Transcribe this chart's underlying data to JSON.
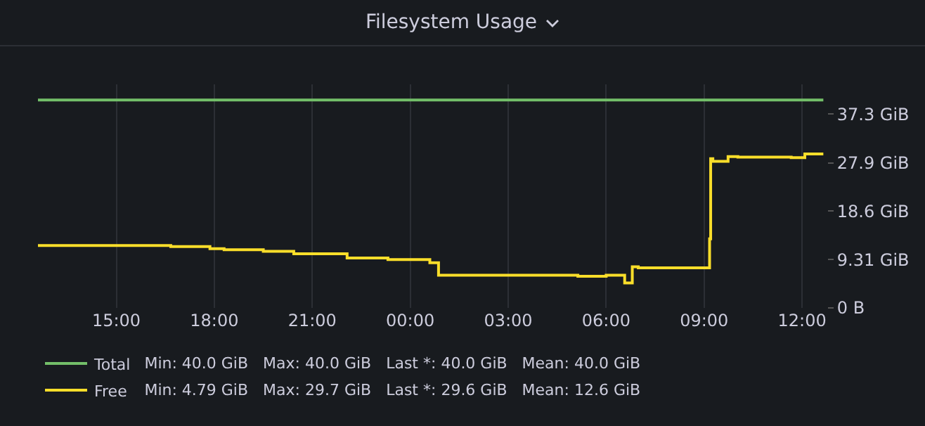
{
  "chart_data": {
    "type": "step",
    "title": "Filesystem Usage",
    "xlim": [
      "--01-01T12:36",
      "--01-02T12:45"
    ],
    "xticks": [
      {
        "value": "--01-01T15:00",
        "label": "15:00"
      },
      {
        "value": "--01-01T18:00",
        "label": "18:00"
      },
      {
        "value": "--01-01T21:00",
        "label": "21:00"
      },
      {
        "value": "--01-02T00:00",
        "label": "00:00"
      },
      {
        "value": "--01-02T03:00",
        "label": "03:00"
      },
      {
        "value": "--01-02T06:00",
        "label": "06:00"
      },
      {
        "value": "--01-02T09:00",
        "label": "09:00"
      },
      {
        "value": "--01-02T12:00",
        "label": "12:00"
      }
    ],
    "ylim": [
      0,
      43
    ],
    "yticks": [
      {
        "value": 0,
        "label": "0 B"
      },
      {
        "value": 9.31,
        "label": "9.31 GiB"
      },
      {
        "value": 18.6,
        "label": "18.6 GiB"
      },
      {
        "value": 27.9,
        "label": "27.9 GiB"
      },
      {
        "value": 37.3,
        "label": "37.3 GiB"
      }
    ],
    "grid": "x",
    "legend": "bottom left",
    "series": [
      {
        "name": "Total",
        "color": "#73bf69",
        "x": [
          "--01-01T12:36",
          "--01-02T12:39"
        ],
        "values": [
          40.0,
          40.0
        ]
      },
      {
        "name": "Free",
        "color": "#fade2a",
        "x": [
          "--01-01T12:36",
          "--01-01T16:40",
          "--01-01T17:52",
          "--01-01T18:18",
          "--01-01T19:30",
          "--01-01T20:26",
          "--01-01T22:04",
          "--01-01T23:19",
          "--01-02T00:36",
          "--01-02T00:52",
          "--01-02T05:08",
          "--01-02T06:00",
          "--01-02T06:34",
          "--01-02T06:38",
          "--01-02T06:48",
          "--01-02T06:59",
          "--01-02T09:10",
          "--01-02T09:12",
          "--01-02T09:16",
          "--01-02T09:44",
          "--01-02T10:02",
          "--01-02T11:40",
          "--01-02T12:05",
          "--01-02T12:39"
        ],
        "values": [
          12.0,
          11.8,
          11.4,
          11.2,
          10.9,
          10.4,
          9.6,
          9.3,
          8.7,
          6.3,
          6.1,
          6.3,
          4.79,
          4.79,
          7.9,
          7.7,
          13.3,
          28.7,
          28.2,
          29.1,
          29.0,
          28.9,
          29.6,
          29.6
        ]
      }
    ],
    "annotations": [
      "Min: 40.0 GiB   Max: 40.0 GiB   Last *: 40.0 GiB   Mean: 40.0 GiB",
      "Min: 4.79 GiB   Max: 29.7 GiB   Last *: 29.6 GiB   Mean: 12.6 GiB"
    ]
  }
}
